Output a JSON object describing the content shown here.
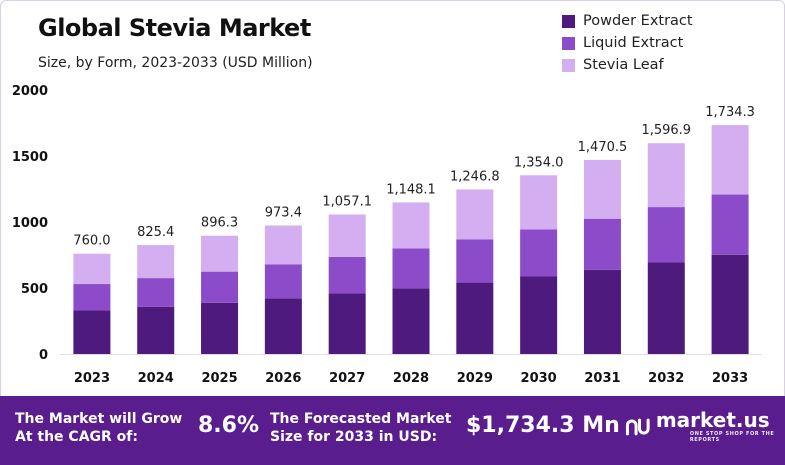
{
  "title": "Global Stevia Market",
  "subtitle": "Size, by Form, 2023-2033  (USD Million)",
  "colors": {
    "powder_extract": "#4e1a7e",
    "liquid_extract": "#8c4cc9",
    "stevia_leaf": "#d3aef0",
    "footer_bg": "#5a1d8e"
  },
  "footer": {
    "grow_label": "The Market will Grow At the CAGR of:",
    "cagr_value": "8.6%",
    "forecast_label": "The Forecasted Market Size for 2033 in USD:",
    "forecast_value": "$1,734.3 Mn",
    "brand": "market.us",
    "tagline": "ONE STOP SHOP FOR THE REPORTS"
  },
  "chart_data": {
    "type": "bar",
    "stacked": true,
    "categories": [
      "2023",
      "2024",
      "2025",
      "2026",
      "2027",
      "2028",
      "2029",
      "2030",
      "2031",
      "2032",
      "2033"
    ],
    "series": [
      {
        "name": "Powder Extract",
        "values": [
          330,
          358,
          388,
          422,
          458,
          498,
          541,
          587,
          638,
          693,
          752
        ]
      },
      {
        "name": "Liquid Extract",
        "values": [
          200,
          217,
          236,
          256,
          278,
          302,
          328,
          356,
          387,
          420,
          456
        ]
      },
      {
        "name": "Stevia Leaf",
        "values": [
          230,
          250.4,
          272.3,
          295.4,
          321.1,
          348.1,
          377.8,
          411,
          445.5,
          483.9,
          526.3
        ]
      }
    ],
    "totals": [
      760.0,
      825.4,
      896.3,
      973.4,
      1057.1,
      1148.1,
      1246.8,
      1354.0,
      1470.5,
      1596.9,
      1734.3
    ],
    "total_labels": [
      "760.0",
      "825.4",
      "896.3",
      "973.4",
      "1,057.1",
      "1,148.1",
      "1,246.8",
      "1,354.0",
      "1,470.5",
      "1,596.9",
      "1,734.3"
    ],
    "y_ticks": [
      0,
      500,
      1000,
      1500,
      2000
    ],
    "ylim": [
      0,
      2000
    ],
    "grid": false,
    "legend_position": "top-right"
  }
}
